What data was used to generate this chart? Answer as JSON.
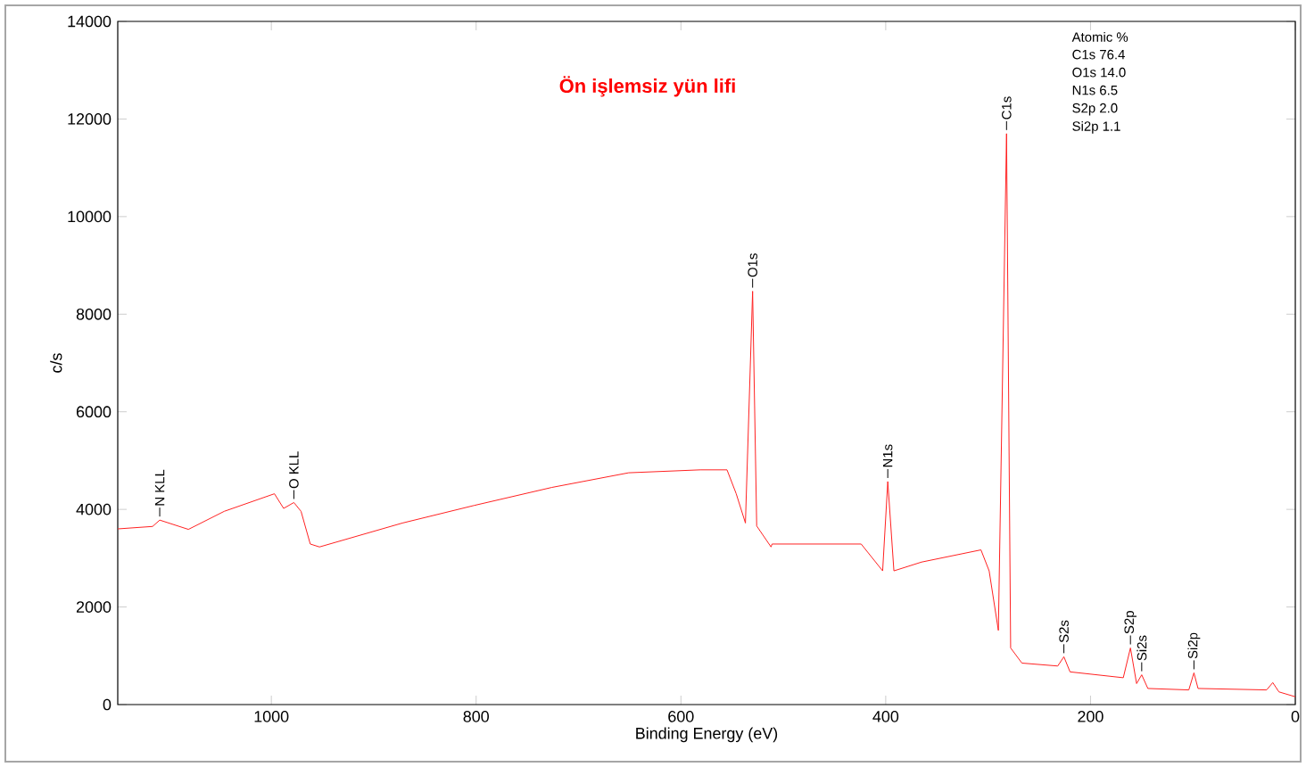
{
  "chart_data": {
    "type": "line",
    "title": "Ön işlemsiz yün lifi",
    "xlabel": "Binding Energy (eV)",
    "ylabel": "c/s",
    "xlim": [
      1150,
      0
    ],
    "xticks": [
      1000,
      800,
      600,
      400,
      200,
      0
    ],
    "ylim": [
      0,
      14000
    ],
    "yticks": [
      0,
      2000,
      4000,
      6000,
      8000,
      10000,
      12000,
      14000
    ],
    "series": [
      {
        "color": "#ff2020",
        "x": [
          1150,
          1116,
          1109,
          1081,
          1046,
          997,
          988,
          978,
          971,
          962,
          953,
          872,
          802,
          726,
          651,
          581,
          555,
          546,
          537,
          530,
          526,
          512,
          511,
          424,
          403,
          398,
          392,
          365,
          307,
          299,
          290,
          282,
          278,
          267,
          232,
          226,
          220,
          168,
          161,
          155,
          150,
          144,
          104,
          99,
          95,
          28,
          22,
          16,
          0
        ],
        "values": [
          3600,
          3650,
          3780,
          3590,
          3960,
          4320,
          4020,
          4140,
          3960,
          3290,
          3230,
          3720,
          4080,
          4450,
          4750,
          4810,
          4810,
          4320,
          3720,
          8470,
          3660,
          3230,
          3290,
          3290,
          2740,
          4570,
          2740,
          2920,
          3170,
          2740,
          1520,
          11700,
          1160,
          850,
          790,
          980,
          670,
          550,
          1160,
          430,
          610,
          330,
          300,
          650,
          330,
          300,
          450,
          260,
          160
        ]
      }
    ],
    "annotations": [
      {
        "text": "N KLL",
        "x": 1109,
        "y": 3780
      },
      {
        "text": "O KLL",
        "x": 978,
        "y": 4140
      },
      {
        "text": "O1s",
        "x": 530,
        "y": 8470
      },
      {
        "text": "N1s",
        "x": 398,
        "y": 4570
      },
      {
        "text": "C1s",
        "x": 282,
        "y": 11700
      },
      {
        "text": "S2s",
        "x": 226,
        "y": 980
      },
      {
        "text": "S2p",
        "x": 161,
        "y": 1160
      },
      {
        "text": "Si2s",
        "x": 150,
        "y": 610
      },
      {
        "text": "Si2p",
        "x": 99,
        "y": 650
      },
      "Atomic %",
      "C1s 76.4",
      "O1s 14.0",
      "N1s 6.5",
      "S2p 2.0",
      "Si2p 1.1"
    ]
  }
}
